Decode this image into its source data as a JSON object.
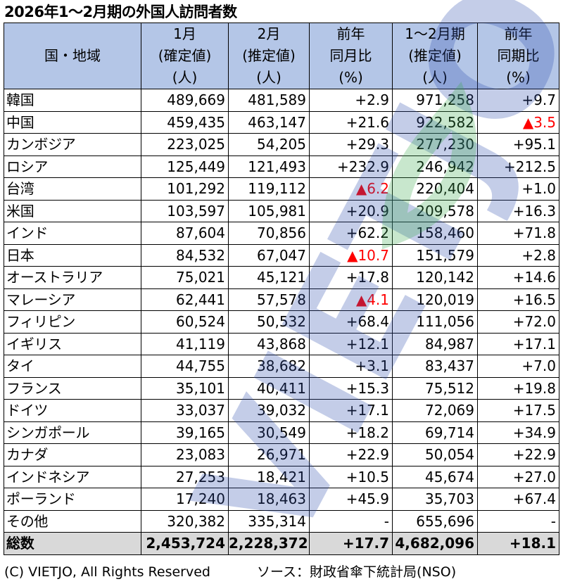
{
  "title": "2026年1～2月期の外国人訪問者数",
  "columns": [
    {
      "lines": [
        "国・地域"
      ]
    },
    {
      "lines": [
        "1月",
        "(確定値)",
        "(人)"
      ]
    },
    {
      "lines": [
        "2月",
        "(推定値)",
        "(人)"
      ]
    },
    {
      "lines": [
        "前年",
        "同月比",
        "(%)"
      ]
    },
    {
      "lines": [
        "1～2月期",
        "(推定値)",
        "(人)"
      ]
    },
    {
      "lines": [
        "前年",
        "同期比",
        "(%)"
      ]
    }
  ],
  "rows": [
    {
      "name": "韓国",
      "jan": "489,669",
      "feb": "481,589",
      "mom": "+2.9",
      "total": "971,258",
      "yoy": "+9.7"
    },
    {
      "name": "中国",
      "jan": "459,435",
      "feb": "463,147",
      "mom": "+21.6",
      "total": "922,582",
      "yoy": "▲3.5"
    },
    {
      "name": "カンボジア",
      "jan": "223,025",
      "feb": "54,205",
      "mom": "+29.3",
      "total": "277,230",
      "yoy": "+95.1"
    },
    {
      "name": "ロシア",
      "jan": "125,449",
      "feb": "121,493",
      "mom": "+232.9",
      "total": "246,942",
      "yoy": "+212.5"
    },
    {
      "name": "台湾",
      "jan": "101,292",
      "feb": "119,112",
      "mom": "▲6.2",
      "total": "220,404",
      "yoy": "+1.0"
    },
    {
      "name": "米国",
      "jan": "103,597",
      "feb": "105,981",
      "mom": "+20.9",
      "total": "209,578",
      "yoy": "+16.3"
    },
    {
      "name": "インド",
      "jan": "87,604",
      "feb": "70,856",
      "mom": "+62.2",
      "total": "158,460",
      "yoy": "+71.8"
    },
    {
      "name": "日本",
      "jan": "84,532",
      "feb": "67,047",
      "mom": "▲10.7",
      "total": "151,579",
      "yoy": "+2.8"
    },
    {
      "name": "オーストラリア",
      "jan": "75,021",
      "feb": "45,121",
      "mom": "+17.8",
      "total": "120,142",
      "yoy": "+14.6"
    },
    {
      "name": "マレーシア",
      "jan": "62,441",
      "feb": "57,578",
      "mom": "▲4.1",
      "total": "120,019",
      "yoy": "+16.5"
    },
    {
      "name": "フィリピン",
      "jan": "60,524",
      "feb": "50,532",
      "mom": "+68.4",
      "total": "111,056",
      "yoy": "+72.0"
    },
    {
      "name": "イギリス",
      "jan": "41,119",
      "feb": "43,868",
      "mom": "+12.1",
      "total": "84,987",
      "yoy": "+17.1"
    },
    {
      "name": "タイ",
      "jan": "44,755",
      "feb": "38,682",
      "mom": "+3.1",
      "total": "83,437",
      "yoy": "+7.0"
    },
    {
      "name": "フランス",
      "jan": "35,101",
      "feb": "40,411",
      "mom": "+15.3",
      "total": "75,512",
      "yoy": "+19.8"
    },
    {
      "name": "ドイツ",
      "jan": "33,037",
      "feb": "39,032",
      "mom": "+17.1",
      "total": "72,069",
      "yoy": "+17.5"
    },
    {
      "name": "シンガポール",
      "jan": "39,165",
      "feb": "30,549",
      "mom": "+18.2",
      "total": "69,714",
      "yoy": "+34.9"
    },
    {
      "name": "カナダ",
      "jan": "23,083",
      "feb": "26,971",
      "mom": "+22.9",
      "total": "50,054",
      "yoy": "+22.9"
    },
    {
      "name": "インドネシア",
      "jan": "27,253",
      "feb": "18,421",
      "mom": "+10.5",
      "total": "45,674",
      "yoy": "+27.0"
    },
    {
      "name": "ポーランド",
      "jan": "17,240",
      "feb": "18,463",
      "mom": "+45.9",
      "total": "35,703",
      "yoy": "+67.4"
    },
    {
      "name": "その他",
      "jan": "320,382",
      "feb": "335,314",
      "mom": "-",
      "total": "655,696",
      "yoy": "-"
    }
  ],
  "total_row": {
    "name": "総数",
    "jan": "2,453,724",
    "feb": "2,228,372",
    "mom": "+17.7",
    "total": "4,682,096",
    "yoy": "+18.1"
  },
  "footer": {
    "copyright": "(C) VIETJO, All Rights Reserved",
    "source": "ソース：財政省傘下統計局(NSO)"
  },
  "watermark": {
    "text": "VIETJO",
    "colors": {
      "main": "#2f4fb0",
      "accent": "#3aa84a"
    }
  },
  "colors": {
    "header_bg": "#b4c6e7",
    "total_bg": "#d9d9d9",
    "negative": "#ff0000"
  }
}
